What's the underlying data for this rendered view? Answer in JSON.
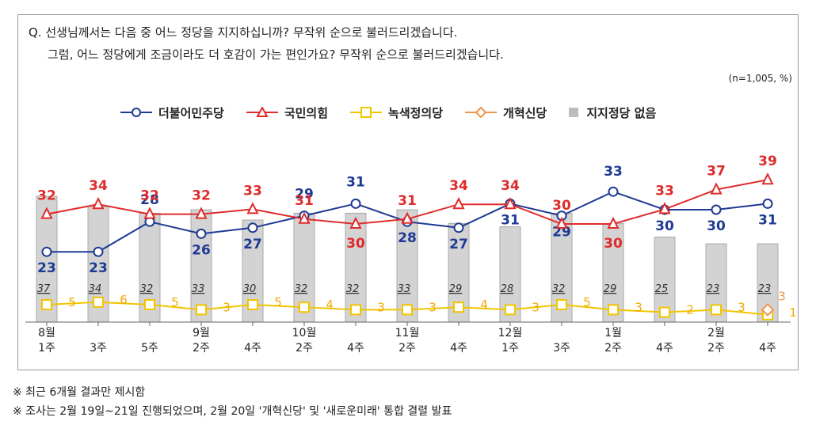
{
  "question": {
    "line1": "Q. 선생님께서는 다음 중 어느 정당을 지지하십니까? 무작위 순으로 불러드리겠습니다.",
    "line2": "그럼, 어느 정당에게 조금이라도 더 호감이 가는 편인가요? 무작위 순으로 불러드리겠습니다."
  },
  "sample_note": "(n=1,005, %)",
  "footnotes": [
    "※ 최근 6개월 결과만 제시함",
    "※ 조사는 2월 19일~21일 진행되었으며, 2월 20일 '개혁신당' 및 '새로운미래' 통합 결렬 발표"
  ],
  "chart_data": {
    "type": "line",
    "categories": [
      [
        "8월",
        "1주"
      ],
      [
        "",
        "3주"
      ],
      [
        "",
        "5주"
      ],
      [
        "9월",
        "2주"
      ],
      [
        "",
        "4주"
      ],
      [
        "10월",
        "2주"
      ],
      [
        "",
        "4주"
      ],
      [
        "11월",
        "2주"
      ],
      [
        "",
        "4주"
      ],
      [
        "12월",
        "1주"
      ],
      [
        "",
        "3주"
      ],
      [
        "1월",
        "2주"
      ],
      [
        "",
        "4주"
      ],
      [
        "2월",
        "2주"
      ],
      [
        "",
        "4주"
      ]
    ],
    "bars": {
      "name": "지지정당 없음",
      "values": [
        37,
        34,
        32,
        33,
        30,
        32,
        32,
        33,
        29,
        28,
        32,
        29,
        25,
        23,
        23
      ],
      "color": "#d3d3d3"
    },
    "series": [
      {
        "name": "더불어민주당",
        "values": [
          23,
          23,
          28,
          26,
          27,
          29,
          31,
          28,
          27,
          31,
          29,
          33,
          30,
          30,
          31
        ],
        "color": "#1f3a93",
        "marker": "circle",
        "label_color": "#1f3a93"
      },
      {
        "name": "국민의힘",
        "values": [
          32,
          34,
          32,
          32,
          33,
          31,
          30,
          31,
          34,
          34,
          30,
          30,
          33,
          37,
          39
        ],
        "color": "#e02b2b",
        "marker": "triangle",
        "label_color": "#e02b2b"
      },
      {
        "name": "녹색정의당",
        "values": [
          5,
          6,
          5,
          3,
          5,
          4,
          3,
          3,
          4,
          3,
          5,
          3,
          2,
          3,
          1
        ],
        "color": "#f2c500",
        "marker": "square",
        "label_color": "#f2a900"
      },
      {
        "name": "개혁신당",
        "values": [
          null,
          null,
          null,
          null,
          null,
          null,
          null,
          null,
          null,
          null,
          null,
          null,
          null,
          null,
          3
        ],
        "color": "#f0954a",
        "marker": "diamond",
        "label_color": "#f0954a"
      }
    ],
    "ylim": [
      0,
      45
    ]
  }
}
